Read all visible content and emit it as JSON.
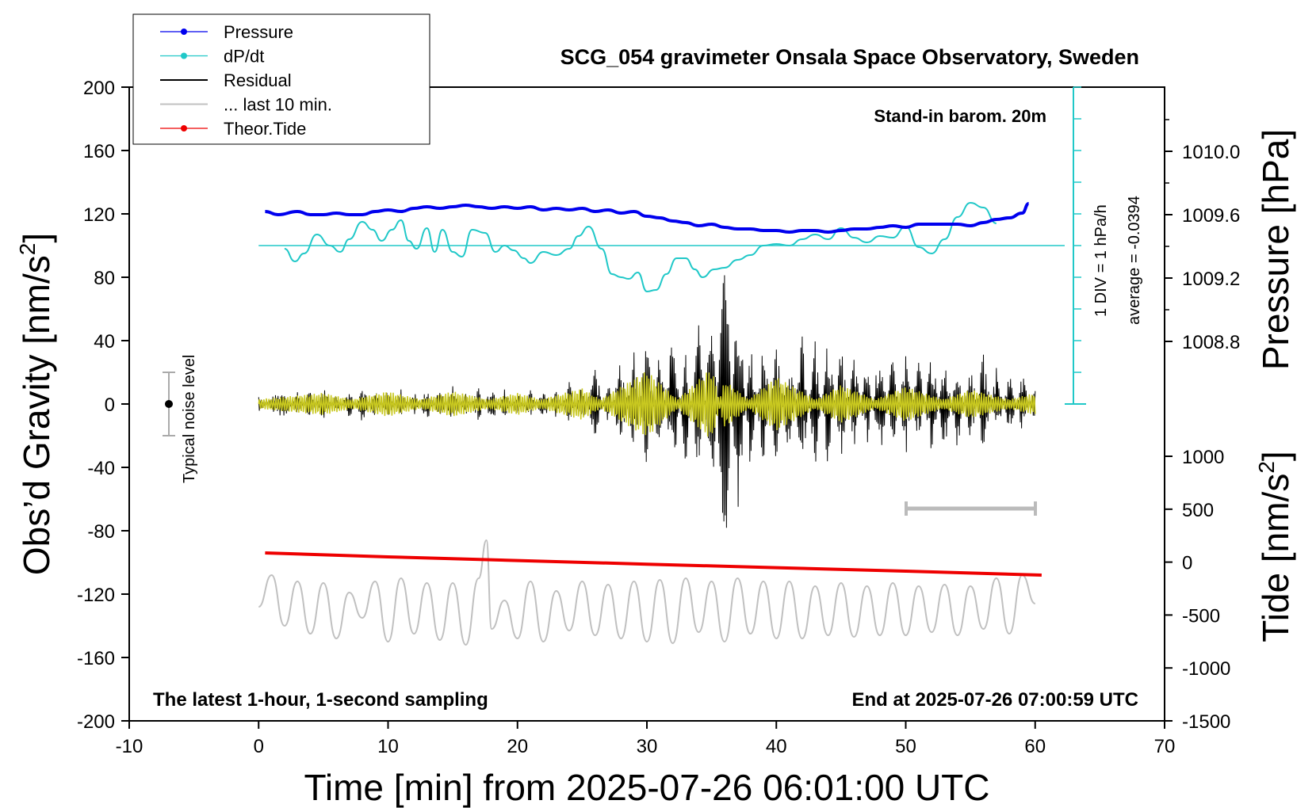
{
  "chart_data": {
    "type": "line",
    "title": "SCG_054 gravimeter Onsala Space Observatory, Sweden",
    "xlabel": "Time [min] from 2025-07-26 06:01:00 UTC",
    "ylabel_left_main": "Obs’d Gravity [nm/s",
    "ylabel_left_sup": "2",
    "ylabel_left_end": "]",
    "ylabel_right_pressure": "Pressure [hPa]",
    "ylabel_right_tide_main": "Tide [nm/s",
    "ylabel_right_tide_sup": "2",
    "ylabel_right_tide_end": "]",
    "xlim": [
      -10,
      70
    ],
    "ylim_left": [
      -200,
      200
    ],
    "x_ticks": [
      "-10",
      "0",
      "10",
      "20",
      "30",
      "40",
      "50",
      "60",
      "70"
    ],
    "y_ticks_left": [
      "200",
      "160",
      "120",
      "80",
      "40",
      "0",
      "-40",
      "-80",
      "-120",
      "-160",
      "-200"
    ],
    "pressure_ticks": [
      "1010.0",
      "1009.6",
      "1009.2",
      "1008.8"
    ],
    "tide_ticks": [
      "1000",
      "500",
      "0",
      "-500",
      "-1000",
      "-1500"
    ],
    "legend": [
      {
        "label": "Pressure",
        "color": "#0000ee",
        "marker": true
      },
      {
        "label": "dP/dt",
        "color": "#20c8c8",
        "marker": true
      },
      {
        "label": "Residual",
        "color": "#000000",
        "marker": false
      },
      {
        "label": "... last 10 min.",
        "color": "#c0c0c0",
        "marker": false
      },
      {
        "label": "Theor.Tide",
        "color": "#ee0000",
        "marker": true
      }
    ],
    "annotations": {
      "barometer": "Stand-in barom. 20m",
      "sampling": "The latest 1-hour, 1-second sampling",
      "end_time": "End at 2025-07-26 07:00:59 UTC",
      "dpdt_scale": "1 DIV = 1 hPa/h",
      "dpdt_average": "average = -0.0394",
      "noise": "Typical noise level"
    },
    "series": [
      {
        "name": "Pressure",
        "unit": "hPa",
        "color": "#0000ee",
        "x": [
          0.5,
          1.5,
          3,
          4,
          5,
          6,
          7,
          8,
          9,
          10,
          11,
          12,
          13,
          14,
          15,
          16,
          17,
          18,
          19,
          20,
          21,
          22,
          23,
          24,
          25,
          26,
          27,
          28,
          29,
          30,
          31,
          32,
          33,
          34,
          35,
          36,
          37,
          38,
          39,
          40,
          41,
          42,
          43,
          44,
          45,
          46,
          47,
          48,
          49,
          50,
          51,
          52,
          53,
          54,
          55,
          56,
          57,
          58,
          59,
          59.5
        ],
        "values": [
          1009.62,
          1009.6,
          1009.62,
          1009.6,
          1009.6,
          1009.61,
          1009.6,
          1009.6,
          1009.62,
          1009.63,
          1009.62,
          1009.64,
          1009.65,
          1009.64,
          1009.65,
          1009.66,
          1009.65,
          1009.64,
          1009.65,
          1009.64,
          1009.65,
          1009.63,
          1009.64,
          1009.63,
          1009.64,
          1009.62,
          1009.63,
          1009.61,
          1009.62,
          1009.59,
          1009.58,
          1009.56,
          1009.55,
          1009.53,
          1009.54,
          1009.52,
          1009.51,
          1009.51,
          1009.5,
          1009.5,
          1009.49,
          1009.5,
          1009.5,
          1009.49,
          1009.5,
          1009.51,
          1009.51,
          1009.52,
          1009.53,
          1009.52,
          1009.54,
          1009.54,
          1009.54,
          1009.54,
          1009.53,
          1009.55,
          1009.57,
          1009.58,
          1009.61,
          1009.67
        ]
      },
      {
        "name": "dP/dt",
        "unit": "nm/s2 display",
        "color": "#20c8c8",
        "x": [
          2,
          2.8,
          3.5,
          4.5,
          5.5,
          6.3,
          7,
          8,
          8.8,
          9.5,
          10.3,
          11,
          11.6,
          12.2,
          13,
          13.6,
          14.2,
          15,
          15.7,
          16.5,
          17.5,
          18.3,
          19,
          19.7,
          20.5,
          21,
          22,
          23,
          24,
          24.7,
          25.5,
          26.5,
          27.3,
          28,
          28.6,
          29.3,
          30,
          30.7,
          31.5,
          32.3,
          33,
          33.7,
          34.3,
          35.2,
          36,
          37,
          38,
          39,
          40,
          41,
          42,
          43,
          44,
          45,
          46,
          47,
          48,
          49,
          50,
          51,
          52,
          53,
          54,
          55,
          56,
          57
        ],
        "values": [
          98,
          90,
          95,
          107,
          100,
          96,
          104,
          115,
          110,
          103,
          110,
          116,
          103,
          98,
          111,
          96,
          110,
          96,
          93,
          110,
          108,
          96,
          100,
          97,
          92,
          89,
          96,
          94,
          98,
          106,
          112,
          98,
          82,
          80,
          79,
          83,
          71,
          72,
          82,
          92,
          92,
          85,
          80,
          85,
          86,
          91,
          94,
          100,
          101,
          100,
          104,
          107,
          104,
          111,
          105,
          102,
          106,
          105,
          112,
          99,
          95,
          104,
          118,
          127,
          124,
          114
        ]
      },
      {
        "name": "Residual",
        "color": "#000000",
        "x": [
          0,
          1,
          2,
          3,
          4,
          5,
          6,
          7,
          8,
          9,
          10,
          11,
          12,
          13,
          14,
          15,
          16,
          17,
          18,
          19,
          20,
          21,
          22,
          23,
          24,
          25,
          26,
          27,
          28,
          29,
          30,
          31,
          32,
          33,
          34,
          35,
          36,
          37,
          38,
          39,
          40,
          41,
          42,
          43,
          44,
          45,
          46,
          47,
          48,
          49,
          50,
          51,
          52,
          53,
          54,
          55,
          56,
          57,
          58,
          59,
          60
        ],
        "values": [
          -6,
          4,
          8,
          -7,
          9,
          -10,
          6,
          -9,
          11,
          -8,
          10,
          -9,
          8,
          -10,
          9,
          -11,
          8,
          -10,
          12,
          -9,
          7,
          -8,
          10,
          -9,
          13,
          -12,
          22,
          -16,
          28,
          -30,
          42,
          -38,
          45,
          -36,
          50,
          -60,
          90,
          -70,
          40,
          -38,
          36,
          -34,
          40,
          -38,
          42,
          -34,
          30,
          -28,
          36,
          -30,
          32,
          -28,
          34,
          -30,
          28,
          -26,
          30,
          -22,
          20,
          -18,
          15
        ]
      },
      {
        "name": "Residual (filtered)",
        "color": "#c8c820",
        "x": [
          0,
          5,
          10,
          15,
          20,
          25,
          30,
          35,
          36,
          40,
          45,
          50,
          55,
          60
        ],
        "values": [
          0,
          4,
          -5,
          5,
          -4,
          7,
          -18,
          20,
          -12,
          14,
          -9,
          8,
          -6,
          4
        ]
      },
      {
        "name": "... last 10 min.",
        "color": "#c0c0c0",
        "x": [
          0,
          1,
          2,
          3,
          4,
          5,
          6,
          7,
          8,
          9,
          10,
          11,
          12,
          13,
          14,
          15,
          16,
          17,
          17.6,
          18,
          19,
          20,
          21,
          22,
          23,
          24,
          25,
          26,
          27,
          28,
          29,
          30,
          31,
          32,
          33,
          34,
          35,
          36,
          37,
          38,
          39,
          40,
          41,
          42,
          43,
          44,
          45,
          46,
          47,
          48,
          49,
          50,
          51,
          52,
          53,
          54,
          55,
          56,
          57,
          58,
          59,
          60
        ],
        "values": [
          -128,
          -108,
          -140,
          -112,
          -145,
          -113,
          -148,
          -119,
          -135,
          -112,
          -150,
          -110,
          -145,
          -113,
          -149,
          -113,
          -152,
          -110,
          -86,
          -142,
          -124,
          -148,
          -112,
          -150,
          -118,
          -143,
          -112,
          -146,
          -114,
          -148,
          -112,
          -150,
          -111,
          -151,
          -110,
          -144,
          -112,
          -150,
          -110,
          -145,
          -112,
          -148,
          -112,
          -148,
          -115,
          -146,
          -113,
          -147,
          -115,
          -146,
          -113,
          -146,
          -115,
          -144,
          -114,
          -146,
          -115,
          -142,
          -110,
          -145,
          -108,
          -126
        ]
      },
      {
        "name": "Theor.Tide",
        "color": "#ee0000",
        "x": [
          0.5,
          10,
          20,
          30,
          40,
          50,
          60.5
        ],
        "values": [
          -94,
          -96.5,
          -98.8,
          -101.1,
          -103.3,
          -105.5,
          -108
        ]
      }
    ]
  }
}
